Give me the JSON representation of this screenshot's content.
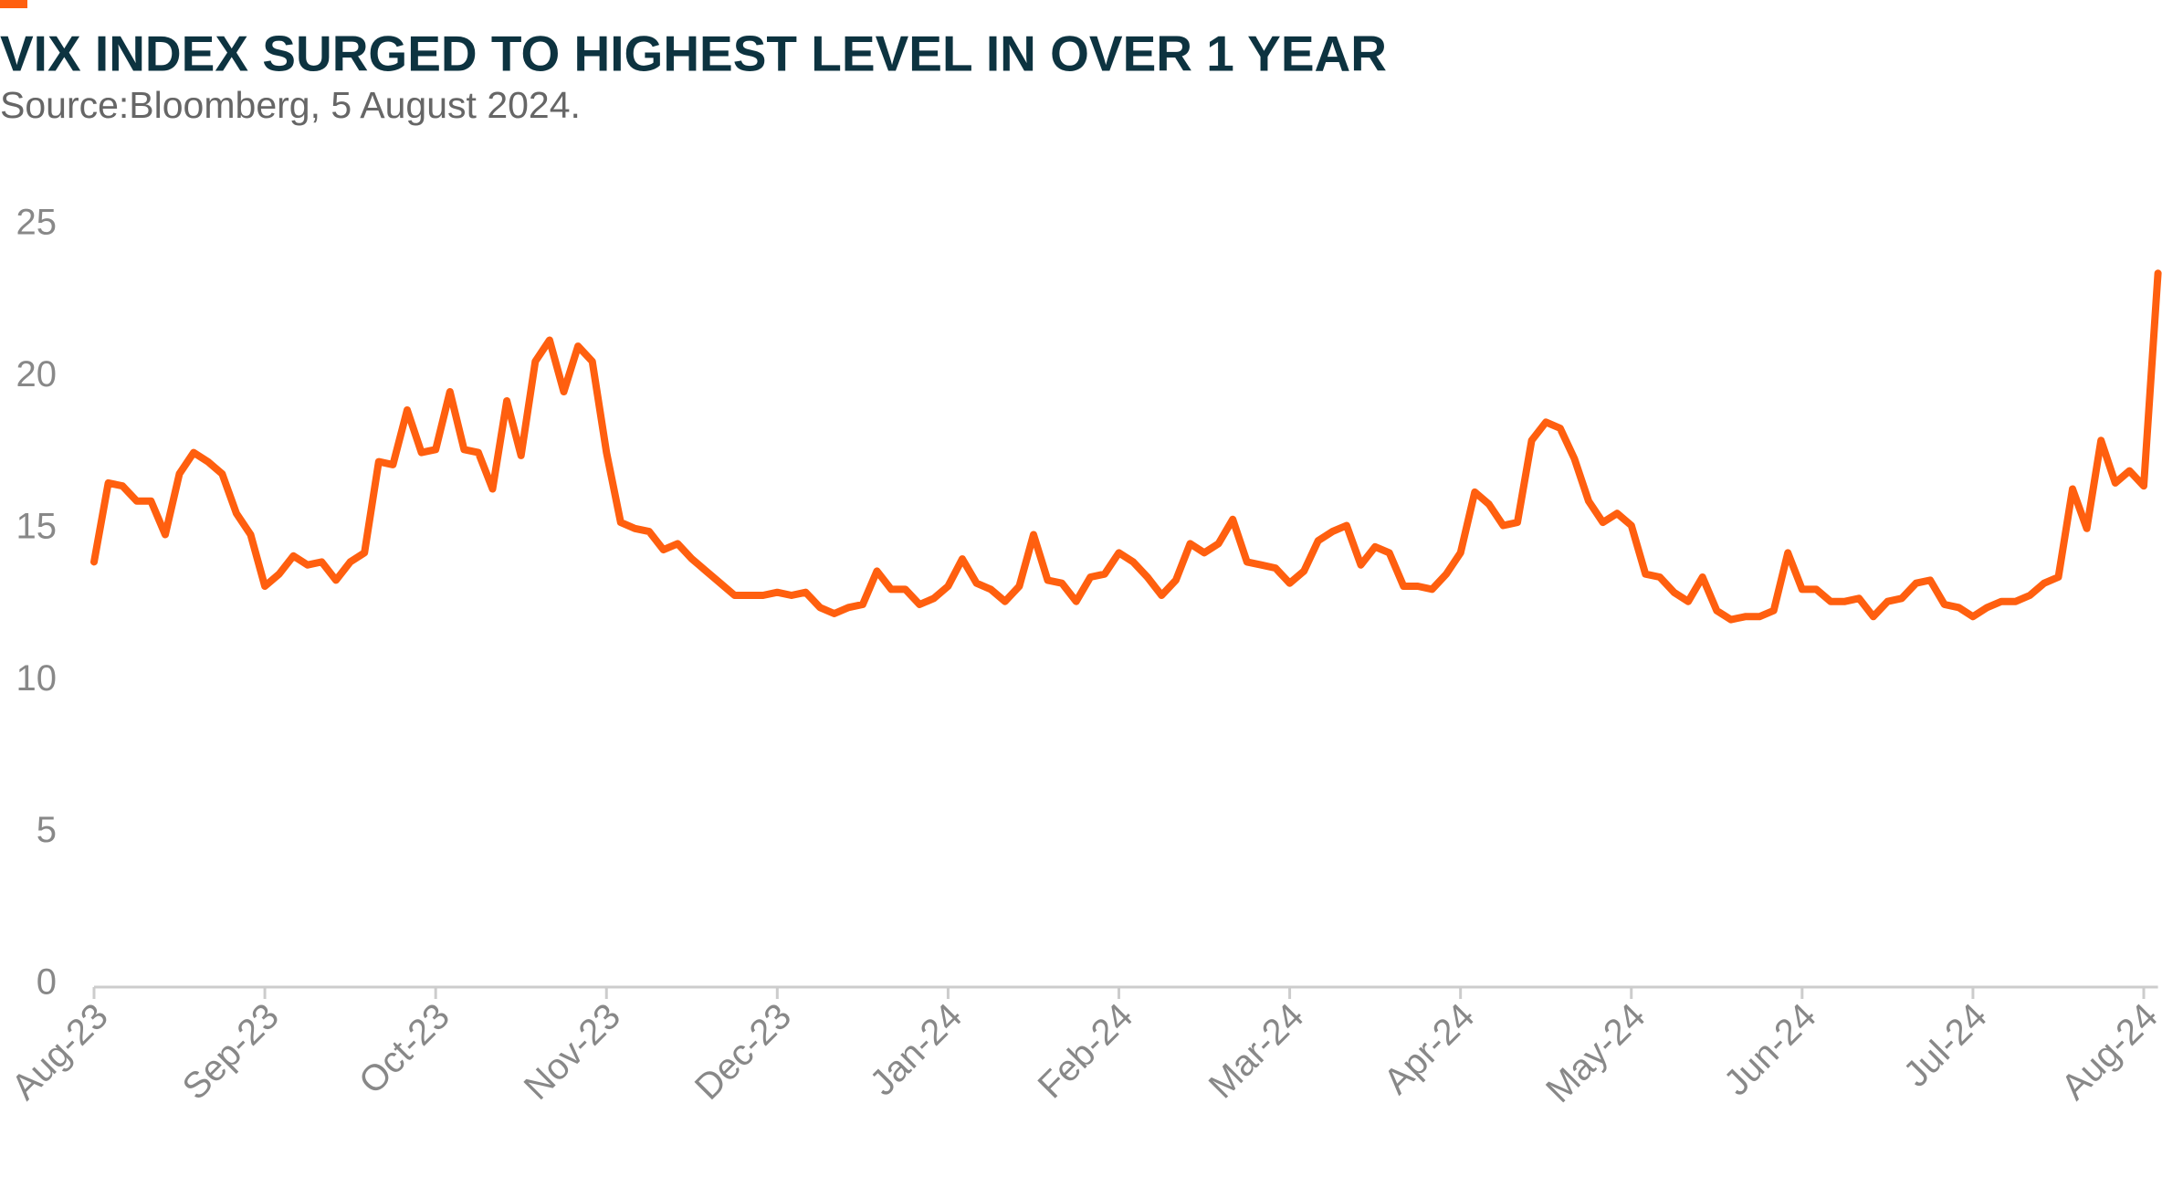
{
  "chart_data": {
    "type": "line",
    "title": "VIX INDEX SURGED TO HIGHEST LEVEL IN OVER 1 YEAR",
    "subtitle": "Source:Bloomberg, 5 August 2024.",
    "categories": [
      "Aug-23",
      null,
      null,
      null,
      null,
      null,
      null,
      null,
      null,
      null,
      null,
      null,
      "Sep-23",
      null,
      null,
      null,
      null,
      null,
      null,
      null,
      null,
      null,
      null,
      null,
      "Oct-23",
      null,
      null,
      null,
      null,
      null,
      null,
      null,
      null,
      null,
      null,
      null,
      "Nov-23",
      null,
      null,
      null,
      null,
      null,
      null,
      null,
      null,
      null,
      null,
      null,
      "Dec-23",
      null,
      null,
      null,
      null,
      null,
      null,
      null,
      null,
      null,
      null,
      null,
      "Jan-24",
      null,
      null,
      null,
      null,
      null,
      null,
      null,
      null,
      null,
      null,
      null,
      "Feb-24",
      null,
      null,
      null,
      null,
      null,
      null,
      null,
      null,
      null,
      null,
      null,
      "Mar-24",
      null,
      null,
      null,
      null,
      null,
      null,
      null,
      null,
      null,
      null,
      null,
      "Apr-24",
      null,
      null,
      null,
      null,
      null,
      null,
      null,
      null,
      null,
      null,
      null,
      "May-24",
      null,
      null,
      null,
      null,
      null,
      null,
      null,
      null,
      null,
      null,
      null,
      "Jun-24",
      null,
      null,
      null,
      null,
      null,
      null,
      null,
      null,
      null,
      null,
      null,
      "Jul-24",
      null,
      null,
      null,
      null,
      null,
      null,
      null,
      null,
      null,
      null,
      null,
      "Aug-24",
      null
    ],
    "series": [
      {
        "name": "VIX",
        "color": "#ff5f0f",
        "values": [
          13.9,
          16.5,
          16.4,
          15.9,
          15.9,
          14.8,
          16.8,
          17.5,
          17.2,
          16.8,
          15.5,
          14.8,
          13.1,
          13.5,
          14.1,
          13.8,
          13.9,
          13.3,
          13.9,
          14.2,
          17.2,
          17.1,
          18.9,
          17.5,
          17.6,
          19.5,
          17.6,
          17.5,
          16.3,
          19.2,
          17.4,
          20.5,
          21.2,
          19.5,
          21.0,
          20.5,
          17.5,
          15.2,
          15.0,
          14.9,
          14.3,
          14.5,
          14.0,
          13.6,
          13.2,
          12.8,
          12.8,
          12.8,
          12.9,
          12.8,
          12.9,
          12.4,
          12.2,
          12.4,
          12.5,
          13.6,
          13.0,
          13.0,
          12.5,
          12.7,
          13.1,
          14.0,
          13.2,
          13.0,
          12.6,
          13.1,
          14.8,
          13.3,
          13.2,
          12.6,
          13.4,
          13.5,
          14.2,
          13.9,
          13.4,
          12.8,
          13.3,
          14.5,
          14.2,
          14.5,
          15.3,
          13.9,
          13.8,
          13.7,
          13.2,
          13.6,
          14.6,
          14.9,
          15.1,
          13.8,
          14.4,
          14.2,
          13.1,
          13.1,
          13.0,
          13.5,
          14.2,
          16.2,
          15.8,
          15.1,
          15.2,
          17.9,
          18.5,
          18.3,
          17.3,
          15.9,
          15.2,
          15.5,
          15.1,
          13.5,
          13.4,
          12.9,
          12.6,
          13.4,
          12.3,
          12.0,
          12.1,
          12.1,
          12.3,
          14.2,
          13.0,
          13.0,
          12.6,
          12.6,
          12.7,
          12.1,
          12.6,
          12.7,
          13.2,
          13.3,
          12.5,
          12.4,
          12.1,
          12.4,
          12.6,
          12.6,
          12.8,
          13.2,
          13.4,
          16.3,
          15.0,
          17.9,
          16.5,
          16.9,
          16.4,
          23.4
        ]
      }
    ],
    "ylim": [
      0,
      25
    ],
    "yticks": [
      0,
      5,
      10,
      15,
      20,
      25
    ],
    "grid": false
  }
}
